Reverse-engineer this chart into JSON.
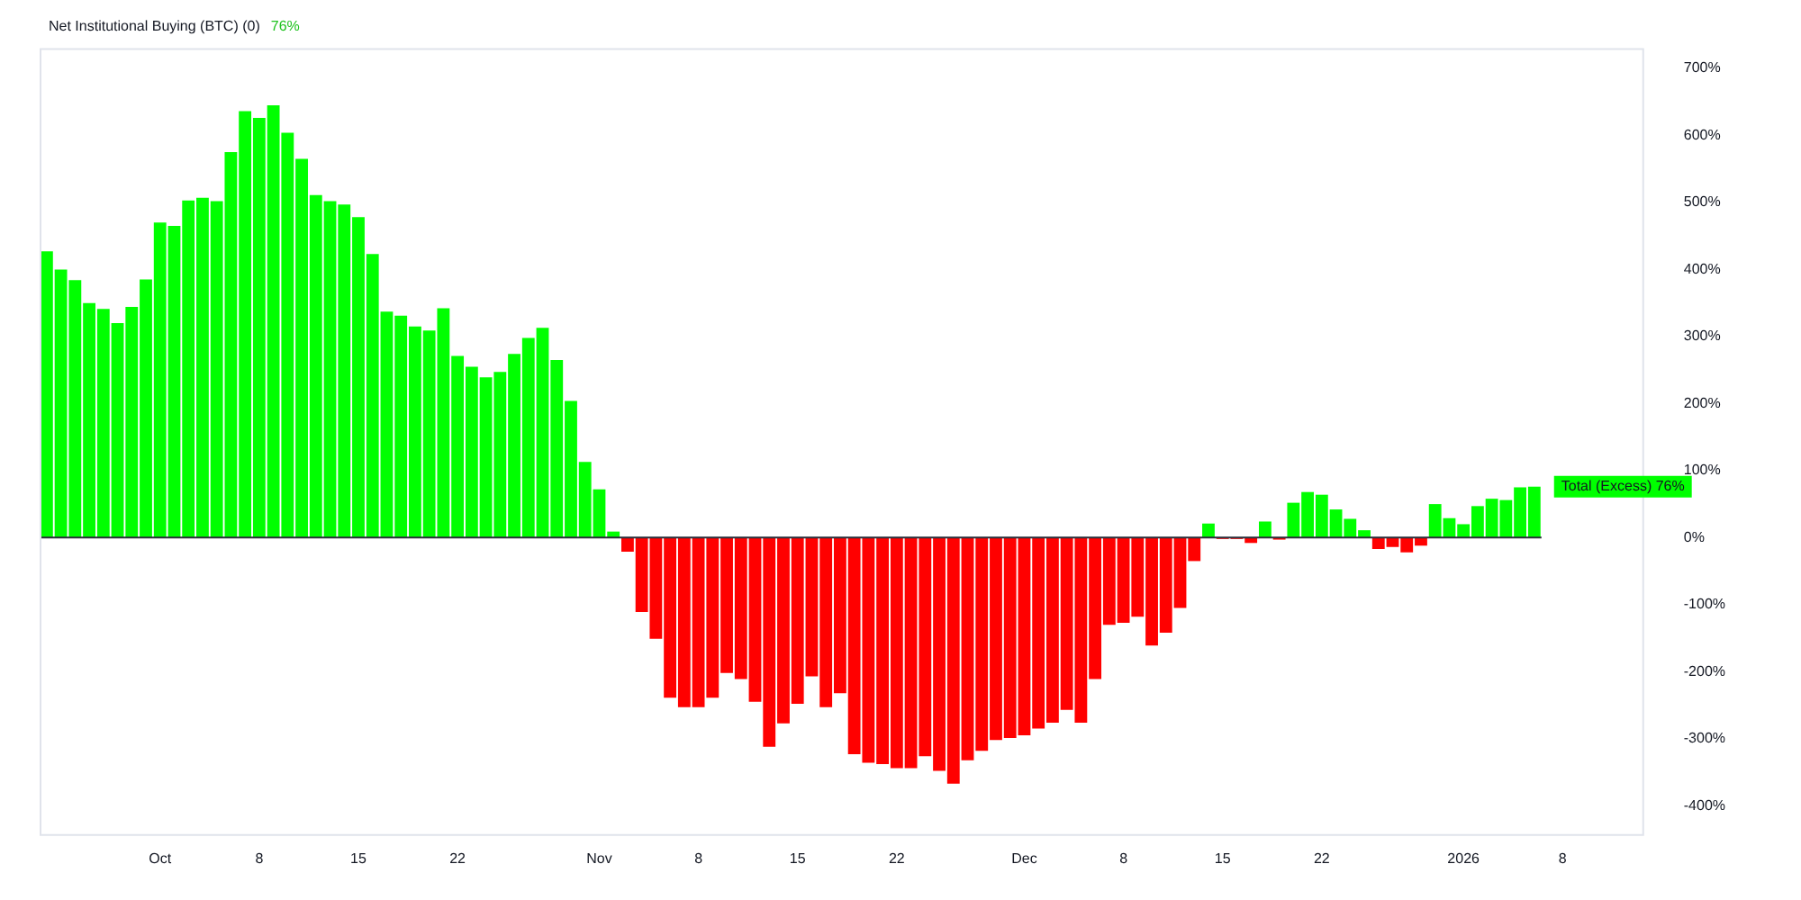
{
  "chart_data": {
    "type": "bar",
    "title": "Net Institutional Buying (BTC) (0)",
    "x": [
      "2025-09-23",
      "2025-09-24",
      "2025-09-25",
      "2025-09-26",
      "2025-09-27",
      "2025-09-28",
      "2025-09-29",
      "2025-09-30",
      "2025-10-01",
      "2025-10-02",
      "2025-10-03",
      "2025-10-04",
      "2025-10-05",
      "2025-10-06",
      "2025-10-07",
      "2025-10-08",
      "2025-10-09",
      "2025-10-10",
      "2025-10-11",
      "2025-10-12",
      "2025-10-13",
      "2025-10-14",
      "2025-10-15",
      "2025-10-16",
      "2025-10-17",
      "2025-10-18",
      "2025-10-19",
      "2025-10-20",
      "2025-10-21",
      "2025-10-22",
      "2025-10-23",
      "2025-10-24",
      "2025-10-25",
      "2025-10-26",
      "2025-10-27",
      "2025-10-28",
      "2025-10-29",
      "2025-10-30",
      "2025-10-31",
      "2025-11-01",
      "2025-11-02",
      "2025-11-03",
      "2025-11-04",
      "2025-11-05",
      "2025-11-06",
      "2025-11-07",
      "2025-11-08",
      "2025-11-09",
      "2025-11-10",
      "2025-11-11",
      "2025-11-12",
      "2025-11-13",
      "2025-11-14",
      "2025-11-15",
      "2025-11-16",
      "2025-11-17",
      "2025-11-18",
      "2025-11-19",
      "2025-11-20",
      "2025-11-21",
      "2025-11-22",
      "2025-11-23",
      "2025-11-24",
      "2025-11-25",
      "2025-11-26",
      "2025-11-27",
      "2025-11-28",
      "2025-11-29",
      "2025-11-30",
      "2025-12-01",
      "2025-12-02",
      "2025-12-03",
      "2025-12-04",
      "2025-12-05",
      "2025-12-06",
      "2025-12-07",
      "2025-12-08",
      "2025-12-09",
      "2025-12-10",
      "2025-12-11",
      "2025-12-12",
      "2025-12-13",
      "2025-12-14",
      "2025-12-15",
      "2025-12-16",
      "2025-12-17",
      "2025-12-18",
      "2025-12-19",
      "2025-12-20",
      "2025-12-21",
      "2025-12-22",
      "2025-12-23",
      "2025-12-24",
      "2025-12-25",
      "2025-12-26",
      "2025-12-27",
      "2025-12-28",
      "2025-12-29",
      "2025-12-30",
      "2025-12-31",
      "2026-01-01",
      "2026-01-02",
      "2026-01-03",
      "2026-01-04",
      "2026-01-05",
      "2026-01-06"
    ],
    "values": [
      427,
      400,
      384,
      350,
      341,
      320,
      344,
      385,
      470,
      465,
      503,
      507,
      502,
      575,
      636,
      626,
      645,
      604,
      565,
      511,
      502,
      497,
      478,
      423,
      337,
      331,
      315,
      309,
      342,
      271,
      255,
      239,
      247,
      274,
      298,
      313,
      265,
      204,
      113,
      72,
      9,
      -21,
      -111,
      -151,
      -239,
      -253,
      -253,
      -239,
      -202,
      -211,
      -245,
      -312,
      -277,
      -248,
      -207,
      -253,
      -232,
      -323,
      -336,
      -338,
      -344,
      -344,
      -326,
      -348,
      -367,
      -332,
      -318,
      -302,
      -299,
      -295,
      -285,
      -276,
      -257,
      -276,
      -211,
      -130,
      -127,
      -118,
      -161,
      -142,
      -105,
      -35,
      21,
      -2,
      -2,
      -8,
      24,
      -3,
      52,
      68,
      64,
      42,
      28,
      11,
      -17,
      -14,
      -22,
      -12,
      50,
      29,
      20,
      47,
      58,
      56,
      75,
      76
    ],
    "colors": [
      "#00ff00",
      "#00ff00",
      "#00ff00",
      "#00ff00",
      "#00ff00",
      "#00ff00",
      "#00ff00",
      "#00ff00",
      "#00ff00",
      "#00ff00",
      "#00ff00",
      "#00ff00",
      "#00ff00",
      "#00ff00",
      "#00ff00",
      "#00ff00",
      "#00ff00",
      "#00ff00",
      "#00ff00",
      "#00ff00",
      "#00ff00",
      "#00ff00",
      "#00ff00",
      "#00ff00",
      "#00ff00",
      "#00ff00",
      "#00ff00",
      "#00ff00",
      "#00ff00",
      "#00ff00",
      "#00ff00",
      "#00ff00",
      "#00ff00",
      "#00ff00",
      "#00ff00",
      "#00ff00",
      "#00ff00",
      "#00ff00",
      "#00ff00",
      "#00ff00",
      "#00ff00",
      "#ff0000",
      "#ff0000",
      "#ff0000",
      "#ff0000",
      "#ff0000",
      "#ff0000",
      "#ff0000",
      "#ff0000",
      "#ff0000",
      "#ff0000",
      "#ff0000",
      "#ff0000",
      "#ff0000",
      "#ff0000",
      "#ff0000",
      "#ff0000",
      "#ff0000",
      "#ff0000",
      "#ff0000",
      "#ff0000",
      "#ff0000",
      "#ff0000",
      "#ff0000",
      "#ff0000",
      "#ff0000",
      "#ff0000",
      "#ff0000",
      "#ff0000",
      "#ff0000",
      "#ff0000",
      "#ff0000",
      "#ff0000",
      "#ff0000",
      "#ff0000",
      "#ff0000",
      "#ff0000",
      "#ff0000",
      "#ff0000",
      "#ff0000",
      "#ff0000",
      "#ff0000",
      "#00ff00",
      "#ff0000",
      "#ff0000",
      "#ff0000",
      "#00ff00",
      "#ff0000",
      "#00ff00",
      "#00ff00",
      "#00ff00",
      "#00ff00",
      "#00ff00",
      "#00ff00",
      "#ff0000",
      "#ff0000",
      "#ff0000",
      "#ff0000",
      "#00ff00",
      "#00ff00",
      "#00ff00",
      "#00ff00",
      "#00ff00",
      "#00ff00",
      "#00ff00",
      "#00ff00"
    ],
    "xlim": [
      "2025-09-22T12:00",
      "2026-01-13T18:00"
    ],
    "xticks": [
      {
        "value": "2025-10-01",
        "label": "Oct"
      },
      {
        "value": "2025-10-08",
        "label": "8"
      },
      {
        "value": "2025-10-15",
        "label": "15"
      },
      {
        "value": "2025-10-22",
        "label": "22"
      },
      {
        "value": "2025-11-01",
        "label": "Nov"
      },
      {
        "value": "2025-11-08",
        "label": "8"
      },
      {
        "value": "2025-11-15",
        "label": "15"
      },
      {
        "value": "2025-11-22",
        "label": "22"
      },
      {
        "value": "2025-12-01",
        "label": "Dec"
      },
      {
        "value": "2025-12-08",
        "label": "8"
      },
      {
        "value": "2025-12-15",
        "label": "15"
      },
      {
        "value": "2025-12-22",
        "label": "22"
      },
      {
        "value": "2026-01-01",
        "label": "2026"
      },
      {
        "value": "2026-01-08",
        "label": "8"
      }
    ],
    "ylim": [
      -445,
      730
    ],
    "yticks": [
      {
        "value": -400,
        "label": "-400%"
      },
      {
        "value": -300,
        "label": "-300%"
      },
      {
        "value": -200,
        "label": "-200%"
      },
      {
        "value": -100,
        "label": "-100%"
      },
      {
        "value": 0,
        "label": "0%"
      },
      {
        "value": 100,
        "label": "100%"
      },
      {
        "value": 200,
        "label": "200%"
      },
      {
        "value": 300,
        "label": "300%"
      },
      {
        "value": 400,
        "label": "400%"
      },
      {
        "value": 500,
        "label": "500%"
      },
      {
        "value": 600,
        "label": "600%"
      },
      {
        "value": 700,
        "label": "700%"
      }
    ],
    "ref_lines": [
      {
        "axis": "y",
        "value": 0,
        "color": "#2a2e39"
      }
    ],
    "annotations": [
      "76%",
      "Total (Excess) 76%"
    ],
    "grid": false,
    "legend": false
  }
}
